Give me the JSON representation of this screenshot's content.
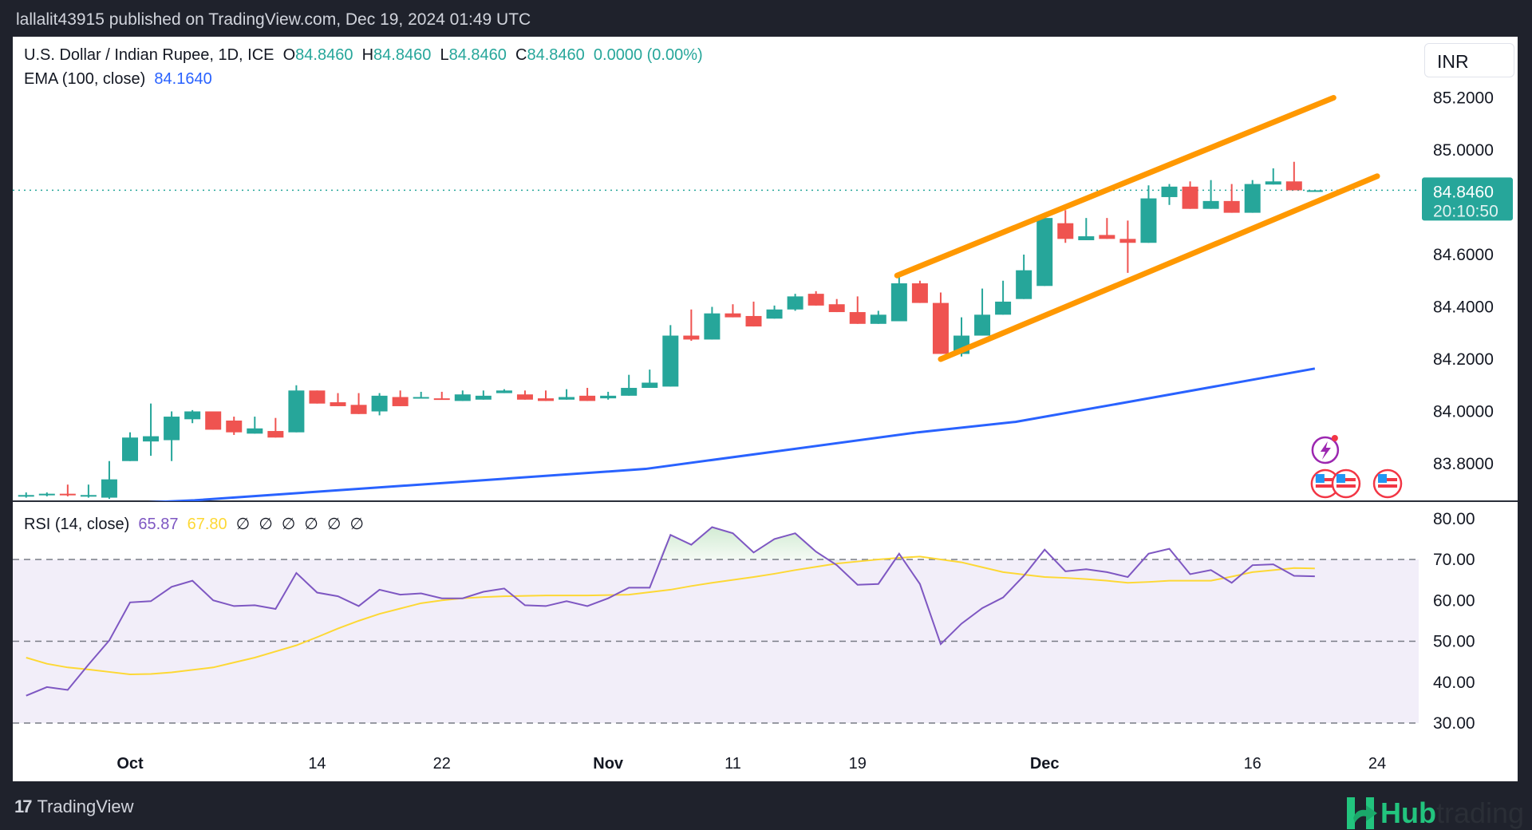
{
  "publish_line": "lallalit43915 published on TradingView.com, Dec 19, 2024 01:49 UTC",
  "legend": {
    "symbol": "U.S. Dollar / Indian Rupee, 1D, ICE",
    "o_label": "O",
    "o_value": "84.8460",
    "h_label": "H",
    "h_value": "84.8460",
    "l_label": "L",
    "l_value": "84.8460",
    "c_label": "C",
    "c_value": "84.8460",
    "change": "0.0000 (0.00%)",
    "ema_label": "EMA (100, close)",
    "ema_value": "84.1640"
  },
  "rsi_legend": {
    "label": "RSI (14, close)",
    "rsi_value": "65.87",
    "ma_value": "67.80",
    "empty_values": [
      "∅",
      "∅",
      "∅",
      "∅",
      "∅",
      "∅"
    ]
  },
  "currency_button": "INR",
  "price_tag": {
    "price": "84.8460",
    "countdown": "20:10:50"
  },
  "footer": {
    "tradingview": "TradingView",
    "tv_logo": "17",
    "hub": "Hub",
    "trading": "trading"
  },
  "colors": {
    "up": "#26a69a",
    "down": "#ef5350",
    "ema": "#2962ff",
    "channel": "#ff9800",
    "rsi": "#7e57c2",
    "rsi_ma": "#fdd835"
  },
  "icons": {
    "event_flash": "lightning-icon",
    "economic_event": "us-flag-icon"
  },
  "chart_data": [
    {
      "type": "candlestick",
      "title": "U.S. Dollar / Indian Rupee, 1D, ICE",
      "ylabel": "INR",
      "ylim": [
        83.67,
        85.3
      ],
      "y_ticks": [
        "85.2000",
        "85.0000",
        "84.6000",
        "84.4000",
        "84.2000",
        "84.0000",
        "83.8000"
      ],
      "y_tick_values": [
        85.2,
        85.0,
        84.6,
        84.4,
        84.2,
        84.0,
        83.8
      ],
      "x_ticks": [
        "Oct",
        "14",
        "22",
        "Nov",
        "11",
        "19",
        "Dec",
        "16",
        "24"
      ],
      "x_tick_index": [
        0,
        9,
        15,
        23,
        29,
        35,
        44,
        54,
        60
      ],
      "x_tick_bold": [
        true,
        false,
        false,
        true,
        false,
        false,
        true,
        false,
        false
      ],
      "first_index": -5,
      "candles": [
        {
          "d": "Sep 24",
          "o": 83.675,
          "h": 83.69,
          "l": 83.67,
          "c": 83.68
        },
        {
          "d": "Sep 25",
          "o": 83.68,
          "h": 83.69,
          "l": 83.675,
          "c": 83.685
        },
        {
          "d": "Sep 26",
          "o": 83.685,
          "h": 83.72,
          "l": 83.675,
          "c": 83.68
        },
        {
          "d": "Sep 27",
          "o": 83.675,
          "h": 83.72,
          "l": 83.67,
          "c": 83.68
        },
        {
          "d": "Sep 30",
          "o": 83.67,
          "h": 83.81,
          "l": 83.665,
          "c": 83.74
        },
        {
          "d": "Oct 1",
          "o": 83.81,
          "h": 83.92,
          "l": 83.81,
          "c": 83.9
        },
        {
          "d": "Oct 2",
          "o": 83.885,
          "h": 84.03,
          "l": 83.83,
          "c": 83.905
        },
        {
          "d": "Oct 3",
          "o": 83.89,
          "h": 84.0,
          "l": 83.81,
          "c": 83.98
        },
        {
          "d": "Oct 4",
          "o": 83.97,
          "h": 84.005,
          "l": 83.955,
          "c": 84.0
        },
        {
          "d": "Oct 7",
          "o": 84.0,
          "h": 84.0,
          "l": 83.93,
          "c": 83.93
        },
        {
          "d": "Oct 8",
          "o": 83.965,
          "h": 83.98,
          "l": 83.91,
          "c": 83.92
        },
        {
          "d": "Oct 9",
          "o": 83.915,
          "h": 83.98,
          "l": 83.915,
          "c": 83.935
        },
        {
          "d": "Oct 10",
          "o": 83.925,
          "h": 83.975,
          "l": 83.9,
          "c": 83.9
        },
        {
          "d": "Oct 11",
          "o": 83.92,
          "h": 84.1,
          "l": 83.92,
          "c": 84.08
        },
        {
          "d": "Oct 14",
          "o": 84.08,
          "h": 84.08,
          "l": 84.03,
          "c": 84.03
        },
        {
          "d": "Oct 15",
          "o": 84.035,
          "h": 84.07,
          "l": 84.02,
          "c": 84.02
        },
        {
          "d": "Oct 16",
          "o": 84.025,
          "h": 84.07,
          "l": 83.99,
          "c": 83.99
        },
        {
          "d": "Oct 17",
          "o": 84.0,
          "h": 84.07,
          "l": 83.985,
          "c": 84.06
        },
        {
          "d": "Oct 18",
          "o": 84.055,
          "h": 84.08,
          "l": 84.02,
          "c": 84.02
        },
        {
          "d": "Oct 21",
          "o": 84.05,
          "h": 84.075,
          "l": 84.05,
          "c": 84.055
        },
        {
          "d": "Oct 22",
          "o": 84.05,
          "h": 84.075,
          "l": 84.045,
          "c": 84.045
        },
        {
          "d": "Oct 23",
          "o": 84.04,
          "h": 84.08,
          "l": 84.04,
          "c": 84.065
        },
        {
          "d": "Oct 24",
          "o": 84.045,
          "h": 84.08,
          "l": 84.045,
          "c": 84.06
        },
        {
          "d": "Oct 25",
          "o": 84.07,
          "h": 84.085,
          "l": 84.07,
          "c": 84.08
        },
        {
          "d": "Oct 28",
          "o": 84.065,
          "h": 84.08,
          "l": 84.045,
          "c": 84.045
        },
        {
          "d": "Oct 29",
          "o": 84.05,
          "h": 84.08,
          "l": 84.04,
          "c": 84.04
        },
        {
          "d": "Oct 30",
          "o": 84.045,
          "h": 84.085,
          "l": 84.045,
          "c": 84.055
        },
        {
          "d": "Oct 31",
          "o": 84.06,
          "h": 84.09,
          "l": 84.04,
          "c": 84.04
        },
        {
          "d": "Nov 1",
          "o": 84.05,
          "h": 84.075,
          "l": 84.045,
          "c": 84.06
        },
        {
          "d": "Nov 4",
          "o": 84.06,
          "h": 84.14,
          "l": 84.06,
          "c": 84.09
        },
        {
          "d": "Nov 5",
          "o": 84.09,
          "h": 84.16,
          "l": 84.09,
          "c": 84.11
        },
        {
          "d": "Nov 6",
          "o": 84.095,
          "h": 84.33,
          "l": 84.095,
          "c": 84.29
        },
        {
          "d": "Nov 7",
          "o": 84.29,
          "h": 84.39,
          "l": 84.27,
          "c": 84.275
        },
        {
          "d": "Nov 8",
          "o": 84.275,
          "h": 84.4,
          "l": 84.275,
          "c": 84.375
        },
        {
          "d": "Nov 11",
          "o": 84.375,
          "h": 84.41,
          "l": 84.36,
          "c": 84.36
        },
        {
          "d": "Nov 12",
          "o": 84.365,
          "h": 84.42,
          "l": 84.325,
          "c": 84.325
        },
        {
          "d": "Nov 13",
          "o": 84.355,
          "h": 84.405,
          "l": 84.355,
          "c": 84.39
        },
        {
          "d": "Nov 14",
          "o": 84.39,
          "h": 84.45,
          "l": 84.385,
          "c": 84.44
        },
        {
          "d": "Nov 15",
          "o": 84.45,
          "h": 84.46,
          "l": 84.405,
          "c": 84.405
        },
        {
          "d": "Nov 18",
          "o": 84.41,
          "h": 84.43,
          "l": 84.38,
          "c": 84.38
        },
        {
          "d": "Nov 19",
          "o": 84.38,
          "h": 84.44,
          "l": 84.335,
          "c": 84.335
        },
        {
          "d": "Nov 20",
          "o": 84.335,
          "h": 84.385,
          "l": 84.335,
          "c": 84.37
        },
        {
          "d": "Nov 21",
          "o": 84.345,
          "h": 84.525,
          "l": 84.345,
          "c": 84.49
        },
        {
          "d": "Nov 22",
          "o": 84.49,
          "h": 84.5,
          "l": 84.415,
          "c": 84.415
        },
        {
          "d": "Nov 25",
          "o": 84.415,
          "h": 84.455,
          "l": 84.22,
          "c": 84.22
        },
        {
          "d": "Nov 26",
          "o": 84.22,
          "h": 84.36,
          "l": 84.21,
          "c": 84.29
        },
        {
          "d": "Nov 27",
          "o": 84.29,
          "h": 84.47,
          "l": 84.29,
          "c": 84.37
        },
        {
          "d": "Nov 28",
          "o": 84.37,
          "h": 84.5,
          "l": 84.37,
          "c": 84.42
        },
        {
          "d": "Nov 29",
          "o": 84.43,
          "h": 84.6,
          "l": 84.43,
          "c": 84.54
        },
        {
          "d": "Dec 2",
          "o": 84.48,
          "h": 84.745,
          "l": 84.48,
          "c": 84.74
        },
        {
          "d": "Dec 3",
          "o": 84.72,
          "h": 84.77,
          "l": 84.645,
          "c": 84.66
        },
        {
          "d": "Dec 4",
          "o": 84.655,
          "h": 84.74,
          "l": 84.655,
          "c": 84.67
        },
        {
          "d": "Dec 5",
          "o": 84.675,
          "h": 84.74,
          "l": 84.66,
          "c": 84.66
        },
        {
          "d": "Dec 6",
          "o": 84.66,
          "h": 84.73,
          "l": 84.53,
          "c": 84.645
        },
        {
          "d": "Dec 9",
          "o": 84.645,
          "h": 84.865,
          "l": 84.645,
          "c": 84.815
        },
        {
          "d": "Dec 10",
          "o": 84.82,
          "h": 84.87,
          "l": 84.79,
          "c": 84.86
        },
        {
          "d": "Dec 11",
          "o": 84.86,
          "h": 84.88,
          "l": 84.775,
          "c": 84.775
        },
        {
          "d": "Dec 12",
          "o": 84.775,
          "h": 84.885,
          "l": 84.775,
          "c": 84.805
        },
        {
          "d": "Dec 13",
          "o": 84.805,
          "h": 84.87,
          "l": 84.76,
          "c": 84.76
        },
        {
          "d": "Dec 16",
          "o": 84.76,
          "h": 84.885,
          "l": 84.76,
          "c": 84.87
        },
        {
          "d": "Dec 17",
          "o": 84.868,
          "h": 84.93,
          "l": 84.868,
          "c": 84.88
        },
        {
          "d": "Dec 18",
          "o": 84.88,
          "h": 84.955,
          "l": 84.846,
          "c": 84.846
        },
        {
          "d": "Dec 19",
          "o": 84.846,
          "h": 84.846,
          "l": 84.846,
          "c": 84.846
        }
      ],
      "last_price": 84.846,
      "ema_100": [
        {
          "i": -8,
          "v": 83.62
        },
        {
          "i": 3.1,
          "v": 83.66
        },
        {
          "i": 24.8,
          "v": 83.78
        },
        {
          "i": 37.9,
          "v": 83.92
        },
        {
          "i": 42.6,
          "v": 83.96
        },
        {
          "i": 48.3,
          "v": 84.04
        },
        {
          "i": 57,
          "v": 84.164
        }
      ],
      "channel": {
        "upper": [
          {
            "i": 36.9,
            "v": 84.52
          },
          {
            "i": 57.9,
            "v": 85.2
          }
        ],
        "lower": [
          {
            "i": 39,
            "v": 84.2
          },
          {
            "i": 60,
            "v": 84.9
          }
        ]
      },
      "events": [
        {
          "type": "flash",
          "i": 57.5
        },
        {
          "type": "us",
          "i": 57.5
        },
        {
          "type": "us",
          "i": 58.5
        },
        {
          "type": "us",
          "i": 60.5
        }
      ]
    },
    {
      "type": "line",
      "title": "RSI (14, close)",
      "ylim": [
        28,
        82
      ],
      "y_ticks": [
        "80.00",
        "70.00",
        "60.00",
        "50.00",
        "40.00",
        "30.00"
      ],
      "y_tick_values": [
        80,
        70,
        60,
        50,
        40,
        30
      ],
      "bands": [
        30,
        50,
        70
      ],
      "first_index": -5,
      "series": [
        {
          "name": "RSI",
          "values": [
            36.7,
            38.8,
            38.1,
            44.3,
            50.2,
            59.5,
            59.8,
            63.3,
            64.8,
            60.0,
            58.6,
            58.8,
            57.9,
            66.7,
            61.9,
            61.0,
            58.6,
            62.6,
            61.4,
            61.7,
            60.5,
            60.5,
            62.1,
            62.9,
            58.8,
            58.6,
            59.8,
            58.6,
            60.5,
            63.1,
            63.1,
            76.0,
            73.6,
            77.9,
            76.4,
            71.7,
            75.0,
            76.4,
            71.9,
            68.6,
            63.8,
            64.0,
            71.4,
            64.0,
            49.3,
            54.3,
            58.1,
            60.7,
            66.0,
            72.4,
            67.1,
            67.6,
            66.9,
            65.7,
            71.4,
            72.6,
            66.4,
            67.4,
            64.3,
            68.6,
            68.8,
            66.0,
            65.87
          ]
        },
        {
          "name": "RSI-based MA",
          "values": [
            46.0,
            44.5,
            43.6,
            43.1,
            42.5,
            41.9,
            42.0,
            42.4,
            43.0,
            43.6,
            44.8,
            46.0,
            47.5,
            49.0,
            51.0,
            53.1,
            55.0,
            56.7,
            58.0,
            59.3,
            60.0,
            60.5,
            60.8,
            61.0,
            61.1,
            61.2,
            61.2,
            61.2,
            61.3,
            61.4,
            62.0,
            62.6,
            63.5,
            64.3,
            65.0,
            65.7,
            66.5,
            67.4,
            68.2,
            69.0,
            69.5,
            70.0,
            70.4,
            70.7,
            70.0,
            69.3,
            68.1,
            66.9,
            66.3,
            65.7,
            65.5,
            65.2,
            64.8,
            64.3,
            64.5,
            64.8,
            64.8,
            64.8,
            65.8,
            66.9,
            67.4,
            67.9,
            67.8
          ]
        }
      ]
    }
  ]
}
